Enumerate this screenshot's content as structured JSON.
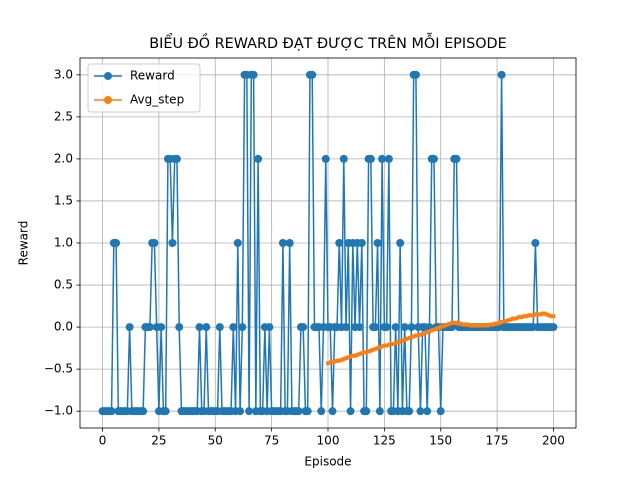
{
  "chart_data": {
    "type": "line",
    "title": "BIỂU ĐỒ REWARD ĐẠT ĐƯỢC TRÊN MỖI EPISODE",
    "x_label": "Episode",
    "y_label": "Reward",
    "xlim": [
      -10,
      210
    ],
    "ylim": [
      -1.2,
      3.2
    ],
    "xticks": [
      0,
      25,
      50,
      75,
      100,
      125,
      150,
      175,
      200
    ],
    "yticks": [
      {
        "value": -1,
        "label": "−1.0"
      },
      {
        "value": -0.5,
        "label": "−0.5"
      },
      {
        "value": 0,
        "label": "0.0"
      },
      0.5,
      {
        "value": 1,
        "label": "1.0"
      },
      1.5,
      {
        "value": 2,
        "label": "2.0"
      },
      2.5,
      {
        "value": 3,
        "label": "3.0"
      }
    ],
    "grid": true,
    "legend": "upper-left",
    "x": [
      0,
      1,
      2,
      3,
      4,
      5,
      6,
      7,
      8,
      9,
      10,
      11,
      12,
      13,
      14,
      15,
      16,
      17,
      18,
      19,
      20,
      21,
      22,
      23,
      24,
      25,
      26,
      27,
      28,
      29,
      30,
      31,
      32,
      33,
      34,
      35,
      36,
      37,
      38,
      39,
      40,
      41,
      42,
      43,
      44,
      45,
      46,
      47,
      48,
      49,
      50,
      51,
      52,
      53,
      54,
      55,
      56,
      57,
      58,
      59,
      60,
      61,
      62,
      63,
      64,
      65,
      66,
      67,
      68,
      69,
      70,
      71,
      72,
      73,
      74,
      75,
      76,
      77,
      78,
      79,
      80,
      81,
      82,
      83,
      84,
      85,
      86,
      87,
      88,
      89,
      90,
      91,
      92,
      93,
      94,
      95,
      96,
      97,
      98,
      99,
      100,
      101,
      102,
      103,
      104,
      105,
      106,
      107,
      108,
      109,
      110,
      111,
      112,
      113,
      114,
      115,
      116,
      117,
      118,
      119,
      120,
      121,
      122,
      123,
      124,
      125,
      126,
      127,
      128,
      129,
      130,
      131,
      132,
      133,
      134,
      135,
      136,
      137,
      138,
      139,
      140,
      141,
      142,
      143,
      144,
      145,
      146,
      147,
      148,
      149,
      150,
      151,
      152,
      153,
      154,
      155,
      156,
      157,
      158,
      159,
      160,
      161,
      162,
      163,
      164,
      165,
      166,
      167,
      168,
      169,
      170,
      171,
      172,
      173,
      174,
      175,
      176,
      177,
      178,
      179,
      180,
      181,
      182,
      183,
      184,
      185,
      186,
      187,
      188,
      189,
      190,
      191,
      192,
      193,
      194,
      195,
      196,
      197,
      198,
      199,
      200
    ],
    "series": [
      {
        "name": "Reward",
        "color": "#1f77b4",
        "values": [
          -1,
          -1,
          -1,
          -1,
          -1,
          1,
          1,
          -1,
          -1,
          -1,
          -1,
          -1,
          0,
          -1,
          -1,
          -1,
          -1,
          -1,
          -1,
          0,
          0,
          0,
          1,
          1,
          0,
          -1,
          0,
          -1,
          -1,
          2,
          2,
          1,
          2,
          2,
          0,
          -1,
          -1,
          -1,
          -1,
          -1,
          -1,
          -1,
          -1,
          0,
          -1,
          -1,
          0,
          -1,
          -1,
          -1,
          -1,
          -1,
          0,
          -1,
          -1,
          -1,
          -1,
          -1,
          0,
          -1,
          1,
          -1,
          0,
          3,
          3,
          -1,
          3,
          3,
          -1,
          2,
          -1,
          -1,
          0,
          -1,
          0,
          -1,
          -1,
          -1,
          -1,
          -1,
          1,
          -1,
          -1,
          1,
          -1,
          -1,
          -1,
          -1,
          0,
          0,
          -1,
          -1,
          3,
          3,
          0,
          0,
          0,
          -1,
          0,
          2,
          0,
          0,
          -1,
          0,
          0,
          1,
          0,
          2,
          0,
          1,
          -1,
          1,
          0,
          1,
          0,
          1,
          -1,
          -1,
          2,
          2,
          0,
          0,
          1,
          -1,
          2,
          0,
          0,
          2,
          -1,
          -1,
          0,
          -1,
          1,
          -1,
          0,
          -1,
          -1,
          0,
          3,
          3,
          0,
          -1,
          0,
          0,
          -1,
          0,
          2,
          2,
          0,
          0,
          -1,
          0,
          0,
          0,
          0,
          0,
          2,
          2,
          0,
          0,
          0,
          0,
          0,
          0,
          0,
          0,
          0,
          0,
          0,
          0,
          0,
          0,
          0,
          0,
          0,
          0,
          0,
          3,
          0,
          0,
          0,
          0,
          0,
          0,
          0,
          0,
          0,
          0,
          0,
          0,
          0,
          0,
          1,
          0,
          0,
          0,
          0,
          0,
          0,
          0,
          0
        ]
      },
      {
        "name": "Avg_step",
        "color": "#ff7f0e",
        "values": [
          null,
          null,
          null,
          null,
          null,
          null,
          null,
          null,
          null,
          null,
          null,
          null,
          null,
          null,
          null,
          null,
          null,
          null,
          null,
          null,
          null,
          null,
          null,
          null,
          null,
          null,
          null,
          null,
          null,
          null,
          null,
          null,
          null,
          null,
          null,
          null,
          null,
          null,
          null,
          null,
          null,
          null,
          null,
          null,
          null,
          null,
          null,
          null,
          null,
          null,
          null,
          null,
          null,
          null,
          null,
          null,
          null,
          null,
          null,
          null,
          null,
          null,
          null,
          null,
          null,
          null,
          null,
          null,
          null,
          null,
          null,
          null,
          null,
          null,
          null,
          null,
          null,
          null,
          null,
          null,
          null,
          null,
          null,
          null,
          null,
          null,
          null,
          null,
          null,
          null,
          null,
          null,
          null,
          null,
          null,
          null,
          null,
          null,
          null,
          null,
          -0.43,
          -0.42,
          -0.42,
          -0.41,
          -0.4,
          -0.4,
          -0.39,
          -0.38,
          -0.37,
          -0.36,
          -0.35,
          -0.34,
          -0.34,
          -0.33,
          -0.32,
          -0.31,
          -0.3,
          -0.3,
          -0.29,
          -0.28,
          -0.27,
          -0.26,
          -0.25,
          -0.24,
          -0.23,
          -0.22,
          -0.22,
          -0.21,
          -0.2,
          -0.2,
          -0.19,
          -0.18,
          -0.17,
          -0.16,
          -0.15,
          -0.14,
          -0.13,
          -0.12,
          -0.11,
          -0.1,
          -0.1,
          -0.09,
          -0.08,
          -0.07,
          -0.06,
          -0.05,
          -0.04,
          -0.03,
          -0.02,
          -0.01,
          0,
          0.01,
          0.02,
          0.03,
          0.04,
          0.05,
          0.05,
          0.05,
          0.04,
          0.04,
          0.03,
          0.03,
          0.03,
          0.02,
          0.02,
          0.02,
          0.02,
          0.02,
          0.02,
          0.02,
          0.02,
          0.02,
          0.03,
          0.03,
          0.04,
          0.04,
          0.05,
          0.06,
          0.07,
          0.07,
          0.08,
          0.09,
          0.1,
          0.1,
          0.11,
          0.12,
          0.12,
          0.13,
          0.13,
          0.14,
          0.14,
          0.14,
          0.15,
          0.15,
          0.15,
          0.16,
          0.16,
          0.15,
          0.14,
          0.13,
          0.13
        ]
      }
    ]
  }
}
